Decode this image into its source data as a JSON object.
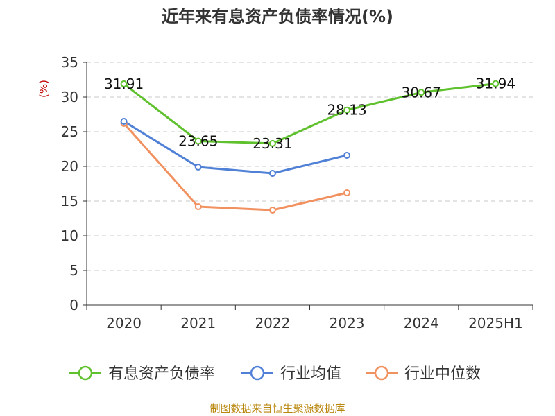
{
  "chart_data": {
    "type": "line",
    "title": "近年来有息资产负债率情况(%)",
    "ylabel": "(%)",
    "categories": [
      "2020",
      "2021",
      "2022",
      "2023",
      "2024",
      "2025H1"
    ],
    "ylim": [
      0,
      35
    ],
    "yticks": [
      0,
      5,
      10,
      15,
      20,
      25,
      30,
      35
    ],
    "grid": "horizontal-dashed",
    "legend_position": "bottom",
    "series": [
      {
        "name": "有息资产负债率",
        "color": "#5ec12d",
        "values": [
          31.91,
          23.65,
          23.31,
          28.13,
          30.67,
          31.94
        ],
        "labels": [
          "31.91",
          "23.65",
          "23.31",
          "28.13",
          "30.67",
          "31.94"
        ]
      },
      {
        "name": "行业均值",
        "color": "#5081d6",
        "values": [
          26.5,
          19.9,
          19.0,
          21.6,
          null,
          null
        ]
      },
      {
        "name": "行业中位数",
        "color": "#f29160",
        "values": [
          26.2,
          14.2,
          13.7,
          16.2,
          null,
          null
        ]
      }
    ]
  },
  "source": "制图数据来自恒生聚源数据库"
}
